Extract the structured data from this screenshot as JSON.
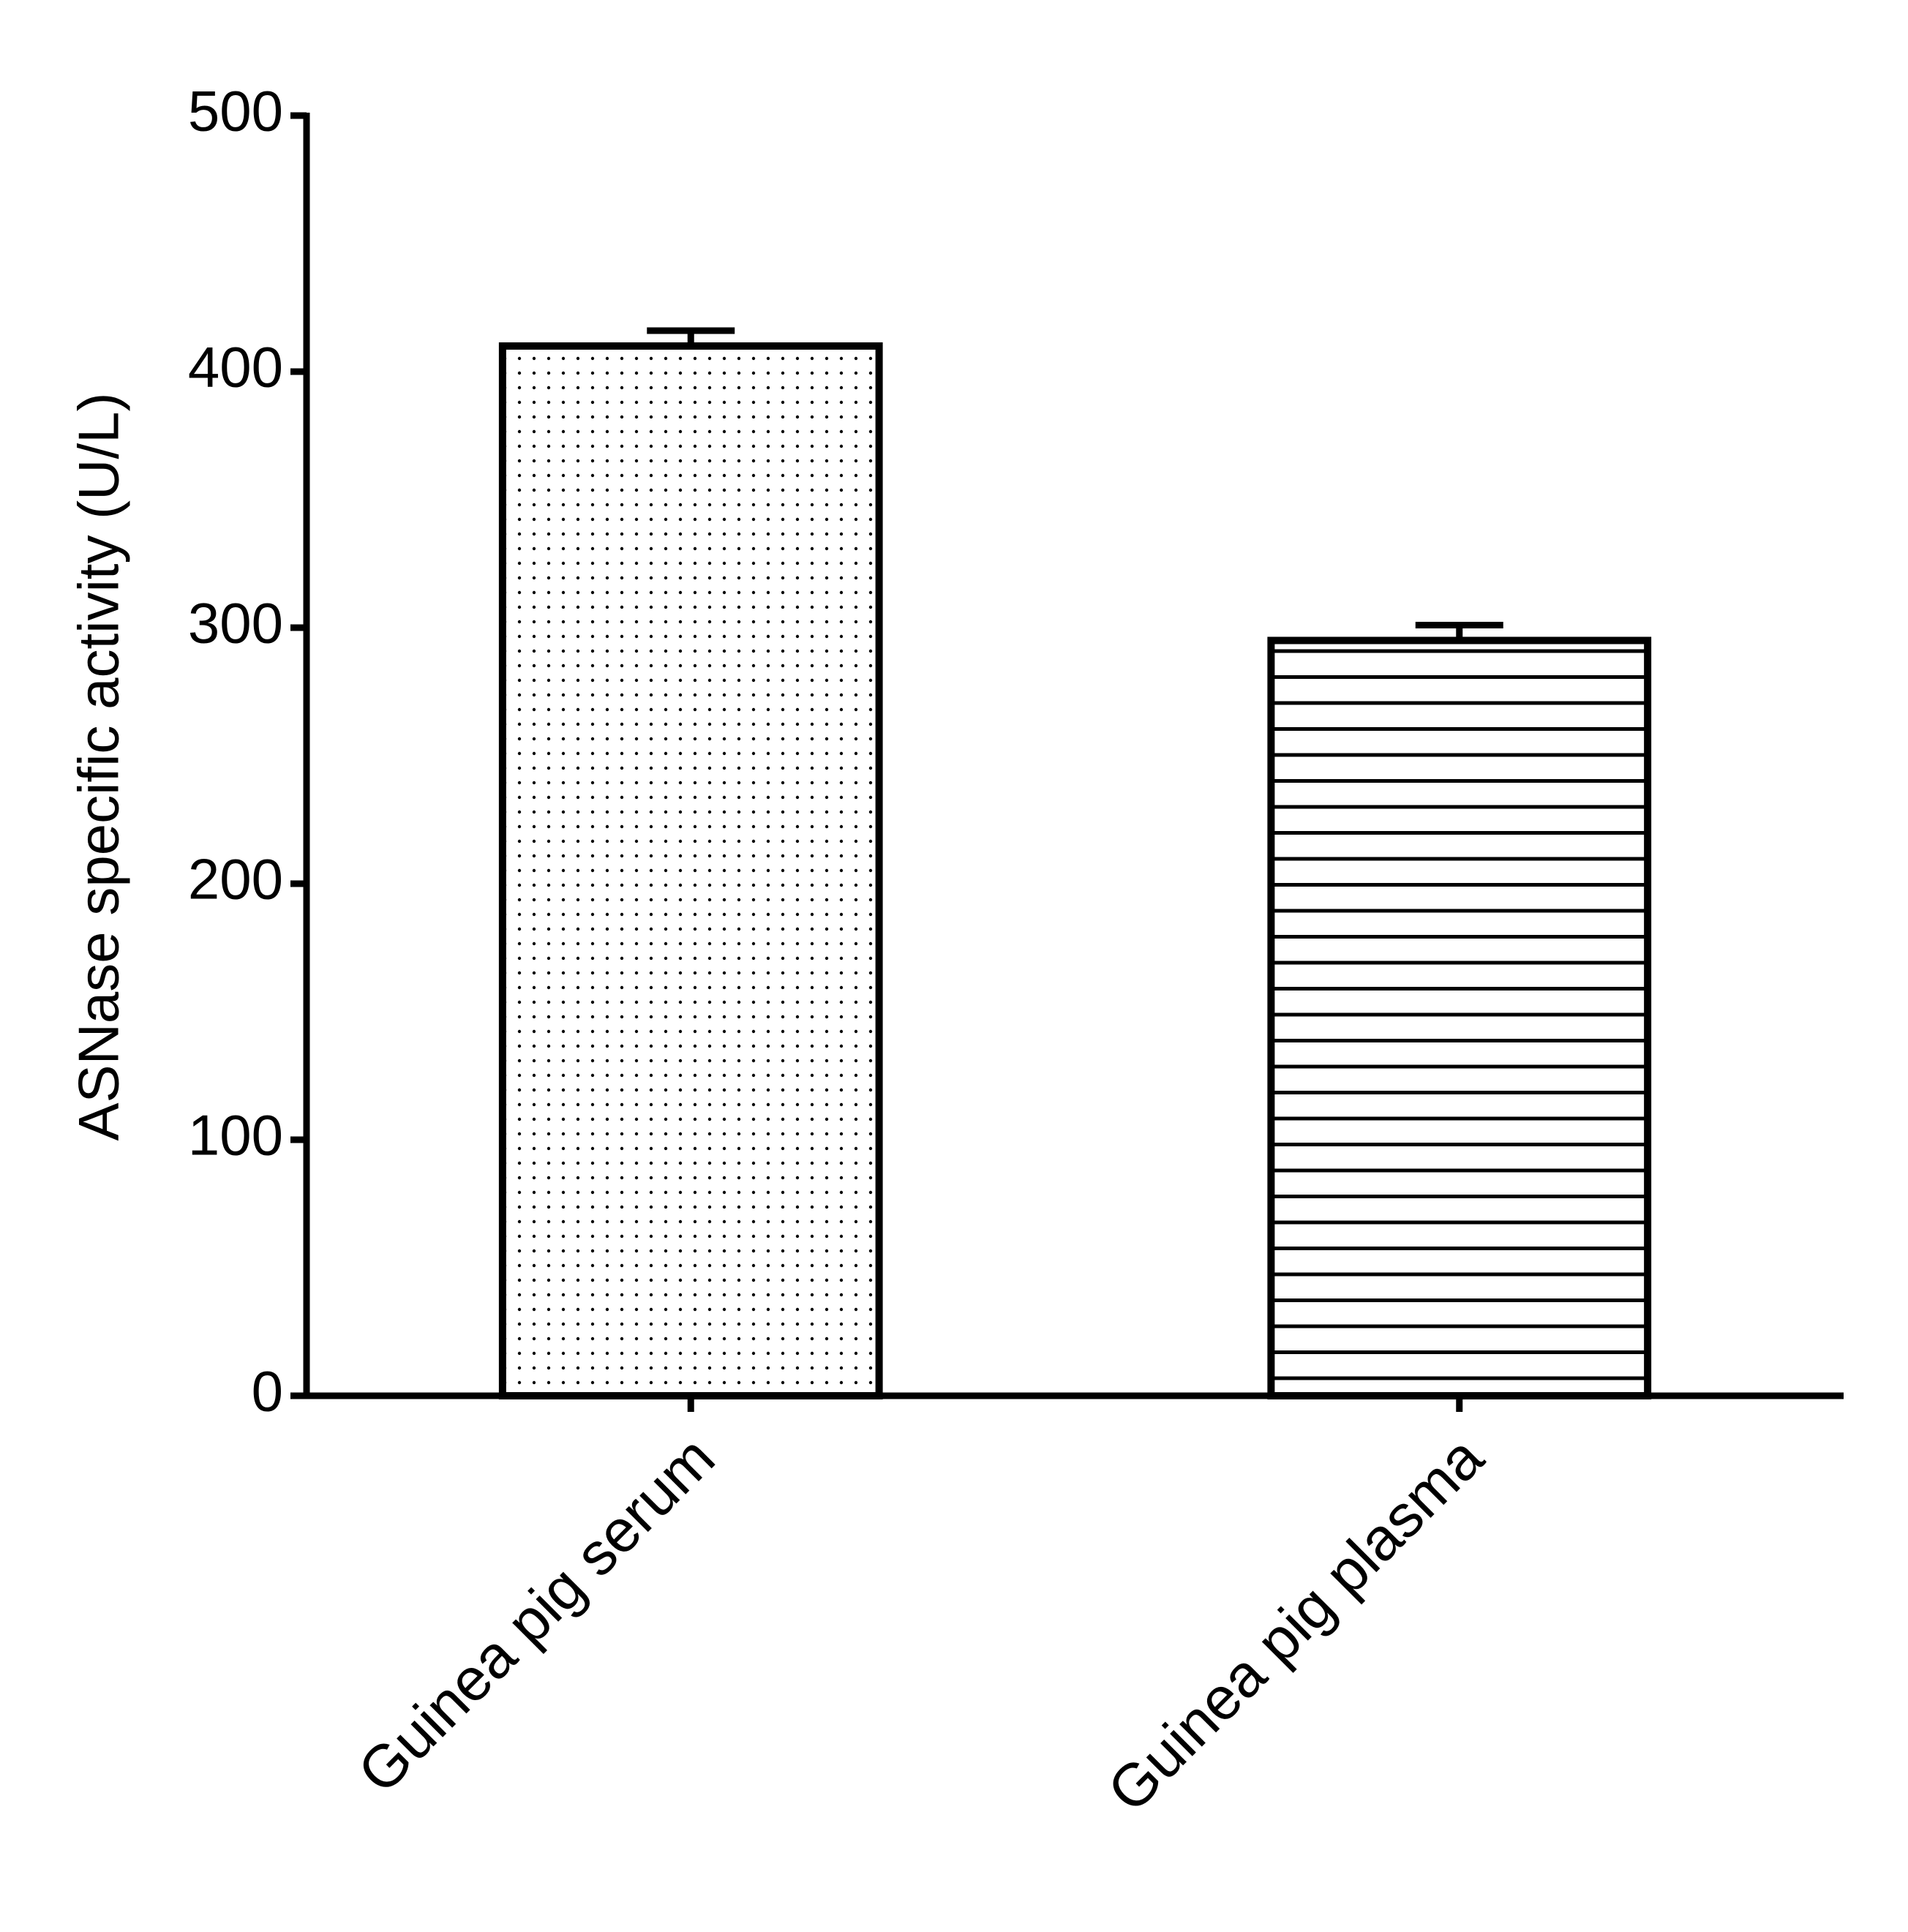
{
  "chart_data": {
    "type": "bar",
    "y_label": "ASNase specific activity (U/L)",
    "categories": [
      "Guinea pig serum",
      "Guinea pig plasma"
    ],
    "values": [
      410,
      295
    ],
    "errors": [
      6,
      6
    ],
    "patterns": [
      "dots",
      "hlines"
    ],
    "color": "#000000",
    "ylim": [
      0,
      500
    ],
    "yticks": [
      0,
      100,
      200,
      300,
      400,
      500
    ],
    "grid": false
  }
}
